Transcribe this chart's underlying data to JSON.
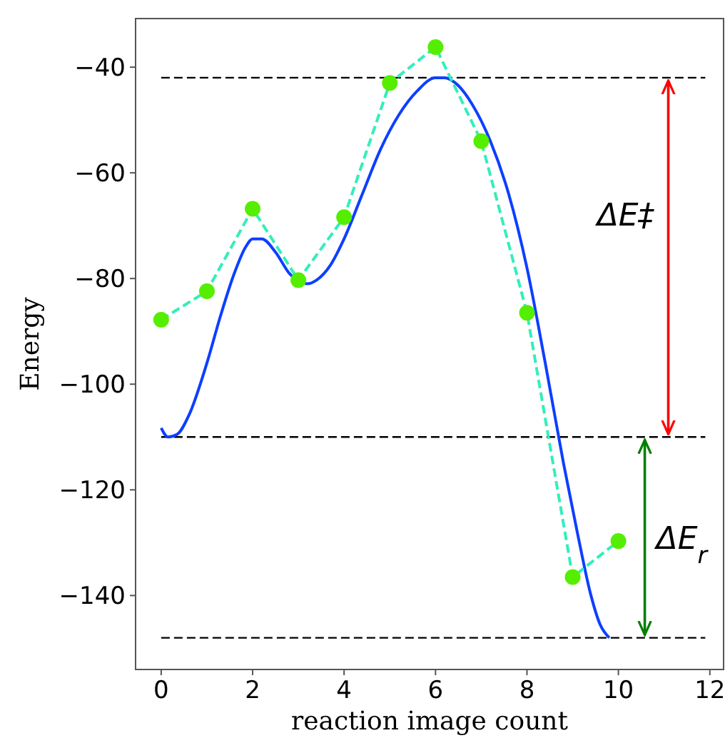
{
  "chart_data": {
    "type": "line",
    "xlabel": "reaction image count",
    "ylabel": "Energy",
    "xlim": [
      -0.56,
      12.3
    ],
    "ylim": [
      -154,
      -30.8
    ],
    "xticks": [
      0,
      2,
      4,
      6,
      8,
      10,
      12
    ],
    "yticks": [
      -140,
      -120,
      -100,
      -80,
      -60,
      -40
    ],
    "grid": false,
    "series": [
      {
        "color": "#0d3fff",
        "line_style": "solid",
        "marker": "none",
        "x": [
          0,
          0.15,
          0.35,
          0.6,
          1,
          1.3,
          1.6,
          1.85,
          2.0,
          2.2,
          2.5,
          2.8,
          3.2,
          3.4,
          3.7,
          4.0,
          4.4,
          4.8,
          5.2,
          5.6,
          6.0,
          6.2,
          6.5,
          6.8,
          7.2,
          7.6,
          8.0,
          8.4,
          8.8,
          9.1,
          9.4,
          9.6,
          9.8
        ],
        "values": [
          -108.3,
          -110,
          -109.5,
          -106,
          -96,
          -87,
          -79,
          -74,
          -72.5,
          -72.5,
          -75,
          -79,
          -81,
          -80.3,
          -77.5,
          -72.5,
          -64,
          -55.5,
          -49,
          -44.5,
          -42,
          -42,
          -43.5,
          -47,
          -54,
          -64,
          -78,
          -96,
          -115,
          -128,
          -140,
          -145.5,
          -148
        ]
      },
      {
        "color": "#33eebb",
        "line_style": "dashed",
        "marker": "none",
        "x": [
          0,
          1,
          2,
          3,
          4,
          5,
          6,
          7,
          8,
          9,
          10
        ],
        "values": [
          -87.8,
          -82.4,
          -66.8,
          -80.3,
          -68.4,
          -43,
          -36.2,
          -54,
          -86.5,
          -136.5,
          -129.7
        ]
      },
      {
        "type": "scatter",
        "color": "#55ee00",
        "marker": "circle",
        "x": [
          0,
          1,
          2,
          3,
          4,
          5,
          6,
          7,
          8,
          9,
          10
        ],
        "values": [
          -87.8,
          -82.4,
          -66.8,
          -80.3,
          -68.4,
          -43,
          -36.2,
          -54,
          -86.5,
          -136.5,
          -129.7
        ]
      }
    ],
    "ref_lines": [
      {
        "axis": "y",
        "value": -42,
        "color": "#000000",
        "line_style": "dashed"
      },
      {
        "axis": "y",
        "value": -110,
        "color": "#000000",
        "line_style": "dashed"
      },
      {
        "axis": "y",
        "value": -148,
        "color": "#000000",
        "line_style": "dashed"
      }
    ],
    "annotations": [
      "ΔE‡",
      "ΔE$_{r}$"
    ]
  }
}
